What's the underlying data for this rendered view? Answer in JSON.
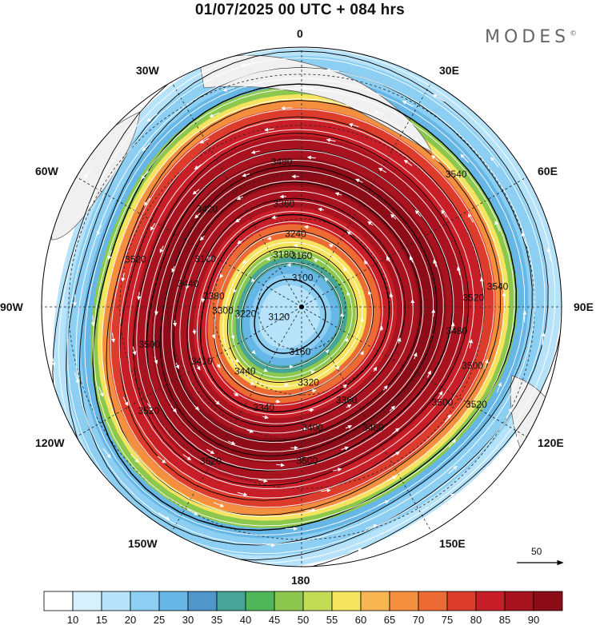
{
  "title": "01/07/2025  00 UTC  + 084 hrs",
  "brand": "MODES",
  "brand_mark": "©",
  "longitude_labels": {
    "top": "0",
    "top_left": "30W",
    "top_right": "30E",
    "upper_left": "60W",
    "upper_right": "60E",
    "left": "90W",
    "right": "90E",
    "lower_left": "120W",
    "lower_right": "120E",
    "bottom_left": "150W",
    "bottom_right": "150E",
    "bottom": "180"
  },
  "contour_labels": [
    {
      "text": "3480",
      "lon": -8,
      "lat": -58
    },
    {
      "text": "3420",
      "lon": -45,
      "lat": -60
    },
    {
      "text": "3360",
      "lon": -10,
      "lat": -67
    },
    {
      "text": "3240",
      "lon": -5,
      "lat": -74
    },
    {
      "text": "3160",
      "lon": 0,
      "lat": -79
    },
    {
      "text": "3100",
      "lon": 2,
      "lat": -84
    },
    {
      "text": "3180",
      "lon": -20,
      "lat": -78
    },
    {
      "text": "3100",
      "lon": -65,
      "lat": -66
    },
    {
      "text": "3440",
      "lon": -80,
      "lat": -64
    },
    {
      "text": "3380",
      "lon": -85,
      "lat": -70
    },
    {
      "text": "3300",
      "lon": -95,
      "lat": -72
    },
    {
      "text": "3220",
      "lon": -100,
      "lat": -77
    },
    {
      "text": "3120",
      "lon": -120,
      "lat": -84
    },
    {
      "text": "3520",
      "lon": -75,
      "lat": -52
    },
    {
      "text": "3500",
      "lon": -105,
      "lat": -55
    },
    {
      "text": "3410",
      "lon": -120,
      "lat": -64
    },
    {
      "text": "3160",
      "lon": -178,
      "lat": -79
    },
    {
      "text": "3440",
      "lon": -140,
      "lat": -70
    },
    {
      "text": "3320",
      "lon": 175,
      "lat": -72
    },
    {
      "text": "3340",
      "lon": -160,
      "lat": -65
    },
    {
      "text": "3360",
      "lon": 155,
      "lat": -66
    },
    {
      "text": "3400",
      "lon": 175,
      "lat": -62
    },
    {
      "text": "3480",
      "lon": 150,
      "lat": -58
    },
    {
      "text": "3500",
      "lon": 178,
      "lat": -55
    },
    {
      "text": "3520",
      "lon": -150,
      "lat": -50
    },
    {
      "text": "3520",
      "lon": -125,
      "lat": -49
    },
    {
      "text": "3500",
      "lon": 125,
      "lat": -52
    },
    {
      "text": "3520",
      "lon": 120,
      "lat": -46
    },
    {
      "text": "3500",
      "lon": 110,
      "lat": -50
    },
    {
      "text": "3480",
      "lon": 100,
      "lat": -55
    },
    {
      "text": "3520",
      "lon": 88,
      "lat": -52
    },
    {
      "text": "3540",
      "lon": 85,
      "lat": -47
    },
    {
      "text": "3540",
      "lon": 50,
      "lat": -46
    }
  ],
  "vector_reference": "50",
  "colorbar": {
    "colors": [
      "#ffffff",
      "#d7f0fd",
      "#b6e3f9",
      "#8dcff2",
      "#66b6e6",
      "#4f96cb",
      "#46a596",
      "#4fb65a",
      "#8bc84d",
      "#c3dc55",
      "#f6e35f",
      "#f8b653",
      "#f38f3e",
      "#ec6a33",
      "#dd3c2d",
      "#c81e28",
      "#a8131f",
      "#8c0d18"
    ],
    "tick_labels": [
      "10",
      "15",
      "20",
      "25",
      "30",
      "35",
      "40",
      "45",
      "50",
      "55",
      "60",
      "65",
      "70",
      "75",
      "80",
      "85",
      "90"
    ]
  },
  "colors": {
    "background": "#ffffff",
    "land": "#f0f0f0",
    "contour": "#000000",
    "streamline": "#ffffff"
  }
}
